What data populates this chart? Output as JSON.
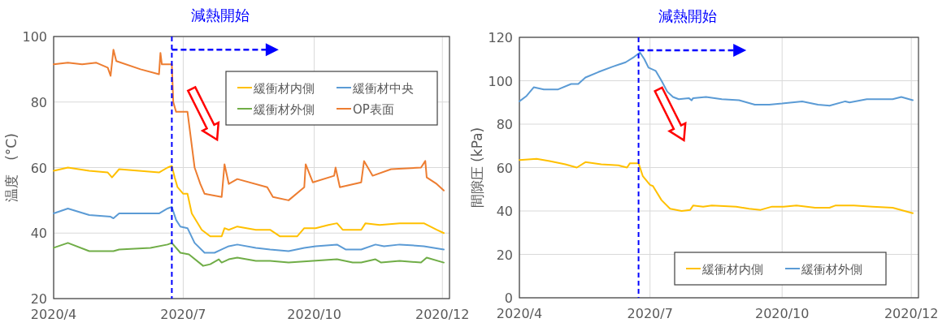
{
  "chart_data": [
    {
      "type": "line",
      "ylabel": "温度　(°C)",
      "xlim": [
        "2020-04-01",
        "2021-01-04"
      ],
      "ylim": [
        20,
        100
      ],
      "yticks": [
        20,
        40,
        60,
        80,
        100
      ],
      "xticks": [
        {
          "value": "2020-04-01",
          "label": "2020/4"
        },
        {
          "value": "2020-07-01",
          "label": "2020/7"
        },
        {
          "value": "2020-10-01",
          "label": "2020/10"
        },
        {
          "value": "2020-12-30",
          "label": "2020/12"
        }
      ],
      "grid": true,
      "legend": "top right",
      "line_style": "solid",
      "marker": "none",
      "ref_lines": [
        {
          "axis": "x",
          "value": "2020-06-23",
          "label": "減熱開始",
          "color": "#0000ff",
          "line_style": "dashed"
        }
      ],
      "series": [
        {
          "name": "緩衝材内側",
          "color": "#ffc000",
          "x": [
            "2020-04-01",
            "2020-04-11",
            "2020-04-26",
            "2020-05-09",
            "2020-05-12",
            "2020-05-17",
            "2020-05-31",
            "2020-06-14",
            "2020-06-20",
            "2020-06-23",
            "2020-06-25",
            "2020-06-27",
            "2020-07-01",
            "2020-07-04",
            "2020-07-07",
            "2020-07-14",
            "2020-07-20",
            "2020-07-28",
            "2020-07-30",
            "2020-08-02",
            "2020-08-08",
            "2020-08-21",
            "2020-08-31",
            "2020-09-07",
            "2020-09-19",
            "2020-09-24",
            "2020-10-02",
            "2020-10-11",
            "2020-10-17",
            "2020-10-21",
            "2020-11-03",
            "2020-11-06",
            "2020-11-16",
            "2020-11-30",
            "2020-12-17",
            "2020-12-26",
            "2020-12-31"
          ],
          "values": [
            59,
            60,
            59,
            58.5,
            57,
            59.5,
            59,
            58.5,
            60,
            60.5,
            57,
            54,
            52,
            52,
            46,
            41,
            39,
            39,
            41.5,
            41,
            42,
            41,
            41,
            39,
            39,
            41.5,
            41.5,
            42.5,
            43,
            41,
            41,
            43,
            42.5,
            43,
            43,
            41,
            40
          ]
        },
        {
          "name": "緩衝材中央",
          "color": "#5b9bd5",
          "x": [
            "2020-04-01",
            "2020-04-11",
            "2020-04-26",
            "2020-05-11",
            "2020-05-13",
            "2020-05-17",
            "2020-06-14",
            "2020-06-20",
            "2020-06-23",
            "2020-06-26",
            "2020-06-29",
            "2020-07-04",
            "2020-07-09",
            "2020-07-16",
            "2020-07-23",
            "2020-07-28",
            "2020-08-02",
            "2020-08-08",
            "2020-08-21",
            "2020-08-31",
            "2020-09-13",
            "2020-09-24",
            "2020-10-02",
            "2020-10-17",
            "2020-10-23",
            "2020-11-03",
            "2020-11-13",
            "2020-11-19",
            "2020-11-30",
            "2020-12-17",
            "2020-12-31"
          ],
          "values": [
            46,
            47.5,
            45.5,
            45,
            44.5,
            46,
            46,
            47.5,
            48,
            44,
            42,
            41.5,
            37,
            34,
            34,
            35,
            36,
            36.5,
            35.5,
            35,
            34.5,
            35.5,
            36,
            36.5,
            35,
            35,
            36.5,
            36,
            36.5,
            36,
            35
          ]
        },
        {
          "name": "緩衝材外側",
          "color": "#70ad47",
          "x": [
            "2020-04-01",
            "2020-04-11",
            "2020-04-26",
            "2020-05-13",
            "2020-05-17",
            "2020-06-08",
            "2020-06-20",
            "2020-06-23",
            "2020-06-29",
            "2020-07-05",
            "2020-07-15",
            "2020-07-20",
            "2020-07-26",
            "2020-07-28",
            "2020-08-02",
            "2020-08-08",
            "2020-08-21",
            "2020-08-31",
            "2020-09-13",
            "2020-09-30",
            "2020-10-17",
            "2020-10-28",
            "2020-11-03",
            "2020-11-13",
            "2020-11-17",
            "2020-11-30",
            "2020-12-15",
            "2020-12-19",
            "2020-12-31"
          ],
          "values": [
            35.5,
            37,
            34.5,
            34.5,
            35,
            35.5,
            36.5,
            37,
            34,
            33.5,
            30,
            30.5,
            32,
            31,
            32,
            32.5,
            31.5,
            31.5,
            31,
            31.5,
            32,
            31,
            31,
            32,
            31,
            31.5,
            31,
            32.5,
            31
          ]
        },
        {
          "name": "OP表面",
          "color": "#ed7d31",
          "x": [
            "2020-04-01",
            "2020-04-11",
            "2020-04-21",
            "2020-05-01",
            "2020-05-09",
            "2020-05-11",
            "2020-05-13",
            "2020-05-15",
            "2020-06-01",
            "2020-06-14",
            "2020-06-15",
            "2020-06-16",
            "2020-06-23",
            "2020-06-24",
            "2020-06-26",
            "2020-07-04",
            "2020-07-09",
            "2020-07-13",
            "2020-07-16",
            "2020-07-28",
            "2020-07-30",
            "2020-08-02",
            "2020-08-08",
            "2020-08-29",
            "2020-09-02",
            "2020-09-13",
            "2020-09-24",
            "2020-09-25",
            "2020-09-30",
            "2020-10-15",
            "2020-10-16",
            "2020-10-19",
            "2020-11-03",
            "2020-11-05",
            "2020-11-11",
            "2020-11-24",
            "2020-12-15",
            "2020-12-18",
            "2020-12-19",
            "2020-12-26",
            "2020-12-31"
          ],
          "values": [
            91.5,
            92,
            91.5,
            92,
            90.5,
            88,
            96,
            92.5,
            90,
            88.5,
            95,
            91.5,
            91.5,
            80,
            77,
            77,
            60,
            55,
            52,
            51,
            61,
            55,
            56.5,
            54,
            51,
            50,
            54,
            61,
            55.5,
            57.5,
            60,
            54,
            55.5,
            62,
            57.5,
            59.5,
            60,
            62,
            57,
            55,
            53
          ]
        }
      ]
    },
    {
      "type": "line",
      "ylabel": "間隙圧 (kPa)",
      "xlim": [
        "2020-04-01",
        "2021-01-04"
      ],
      "ylim": [
        0,
        120
      ],
      "yticks": [
        0,
        20,
        40,
        60,
        80,
        100,
        120
      ],
      "xticks": [
        {
          "value": "2020-04-01",
          "label": "2020/4"
        },
        {
          "value": "2020-07-01",
          "label": "2020/7"
        },
        {
          "value": "2020-10-01",
          "label": "2020/10"
        },
        {
          "value": "2020-12-30",
          "label": "2020/12"
        }
      ],
      "grid": true,
      "legend": "bottom right",
      "line_style": "solid",
      "marker": "none",
      "ref_lines": [
        {
          "axis": "x",
          "value": "2020-06-23",
          "label": "減熱開始",
          "color": "#0000ff",
          "line_style": "dashed"
        }
      ],
      "series": [
        {
          "name": "緩衝材内側",
          "color": "#ffc000",
          "x": [
            "2020-04-01",
            "2020-04-13",
            "2020-04-22",
            "2020-05-03",
            "2020-05-11",
            "2020-05-17",
            "2020-05-28",
            "2020-06-09",
            "2020-06-15",
            "2020-06-17",
            "2020-06-23",
            "2020-06-26",
            "2020-07-01",
            "2020-07-03",
            "2020-07-09",
            "2020-07-15",
            "2020-07-23",
            "2020-07-29",
            "2020-07-31",
            "2020-08-07",
            "2020-08-13",
            "2020-08-30",
            "2020-09-08",
            "2020-09-16",
            "2020-09-24",
            "2020-10-02",
            "2020-10-11",
            "2020-10-24",
            "2020-11-03",
            "2020-11-07",
            "2020-11-20",
            "2020-12-03",
            "2020-12-17",
            "2020-12-31"
          ],
          "values": [
            63.5,
            64,
            63,
            61.5,
            60,
            62.5,
            61.5,
            61,
            60,
            62,
            62,
            56,
            52,
            51.5,
            45,
            41,
            40,
            40.5,
            42.5,
            42,
            42.5,
            42,
            41,
            40.5,
            42,
            42,
            42.5,
            41.5,
            41.5,
            42.5,
            42.5,
            42,
            41.5,
            39
          ]
        },
        {
          "name": "緩衝材外側",
          "color": "#5b9bd5",
          "x": [
            "2020-04-01",
            "2020-04-06",
            "2020-04-11",
            "2020-04-18",
            "2020-04-28",
            "2020-05-07",
            "2020-05-12",
            "2020-05-17",
            "2020-05-26",
            "2020-06-05",
            "2020-06-14",
            "2020-06-20",
            "2020-06-24",
            "2020-06-27",
            "2020-06-30",
            "2020-07-05",
            "2020-07-09",
            "2020-07-13",
            "2020-07-17",
            "2020-07-21",
            "2020-07-28",
            "2020-07-30",
            "2020-07-31",
            "2020-08-09",
            "2020-08-20",
            "2020-09-01",
            "2020-09-12",
            "2020-09-22",
            "2020-10-01",
            "2020-10-15",
            "2020-10-26",
            "2020-11-03",
            "2020-11-14",
            "2020-11-17",
            "2020-11-29",
            "2020-12-17",
            "2020-12-23",
            "2020-12-31"
          ],
          "values": [
            90.5,
            93,
            97,
            96,
            96,
            98.5,
            98.5,
            101.5,
            104,
            106.5,
            108.5,
            111,
            113,
            110,
            106,
            104.5,
            100,
            95,
            92.5,
            91.5,
            92,
            91,
            92,
            92.5,
            91.5,
            91,
            89,
            89,
            89.5,
            90.5,
            89,
            88.5,
            90.5,
            90,
            91.5,
            91.5,
            92.5,
            91
          ]
        }
      ]
    }
  ]
}
